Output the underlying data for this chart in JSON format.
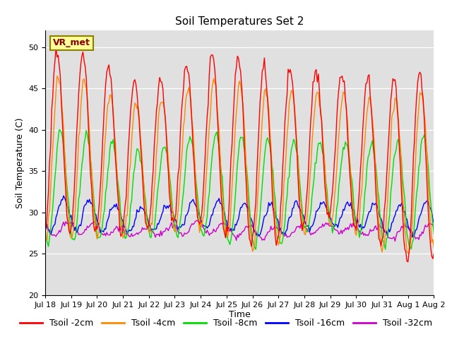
{
  "title": "Soil Temperatures Set 2",
  "xlabel": "Time",
  "ylabel": "Soil Temperature (C)",
  "ylim": [
    20,
    52
  ],
  "yticks": [
    20,
    25,
    30,
    35,
    40,
    45,
    50
  ],
  "colors": {
    "Tsoil -2cm": "#ff0000",
    "Tsoil -4cm": "#ff8800",
    "Tsoil -8cm": "#00dd00",
    "Tsoil -16cm": "#0000ff",
    "Tsoil -32cm": "#cc00cc"
  },
  "label_box": "VR_met",
  "bg_color": "#e0e0e0",
  "outer_bg": "#ffffff",
  "title_fontsize": 11,
  "axis_label_fontsize": 9,
  "tick_fontsize": 8,
  "legend_fontsize": 9,
  "tick_labels": [
    "Jul 18",
    "Jul 19",
    "Jul 20",
    "Jul 21",
    "Jul 22",
    "Jul 23",
    "Jul 24",
    "Jul 25",
    "Jul 26",
    "Jul 27",
    "Jul 28",
    "Jul 29",
    "Jul 30",
    "Jul 31",
    "Aug 1",
    "Aug 2"
  ]
}
